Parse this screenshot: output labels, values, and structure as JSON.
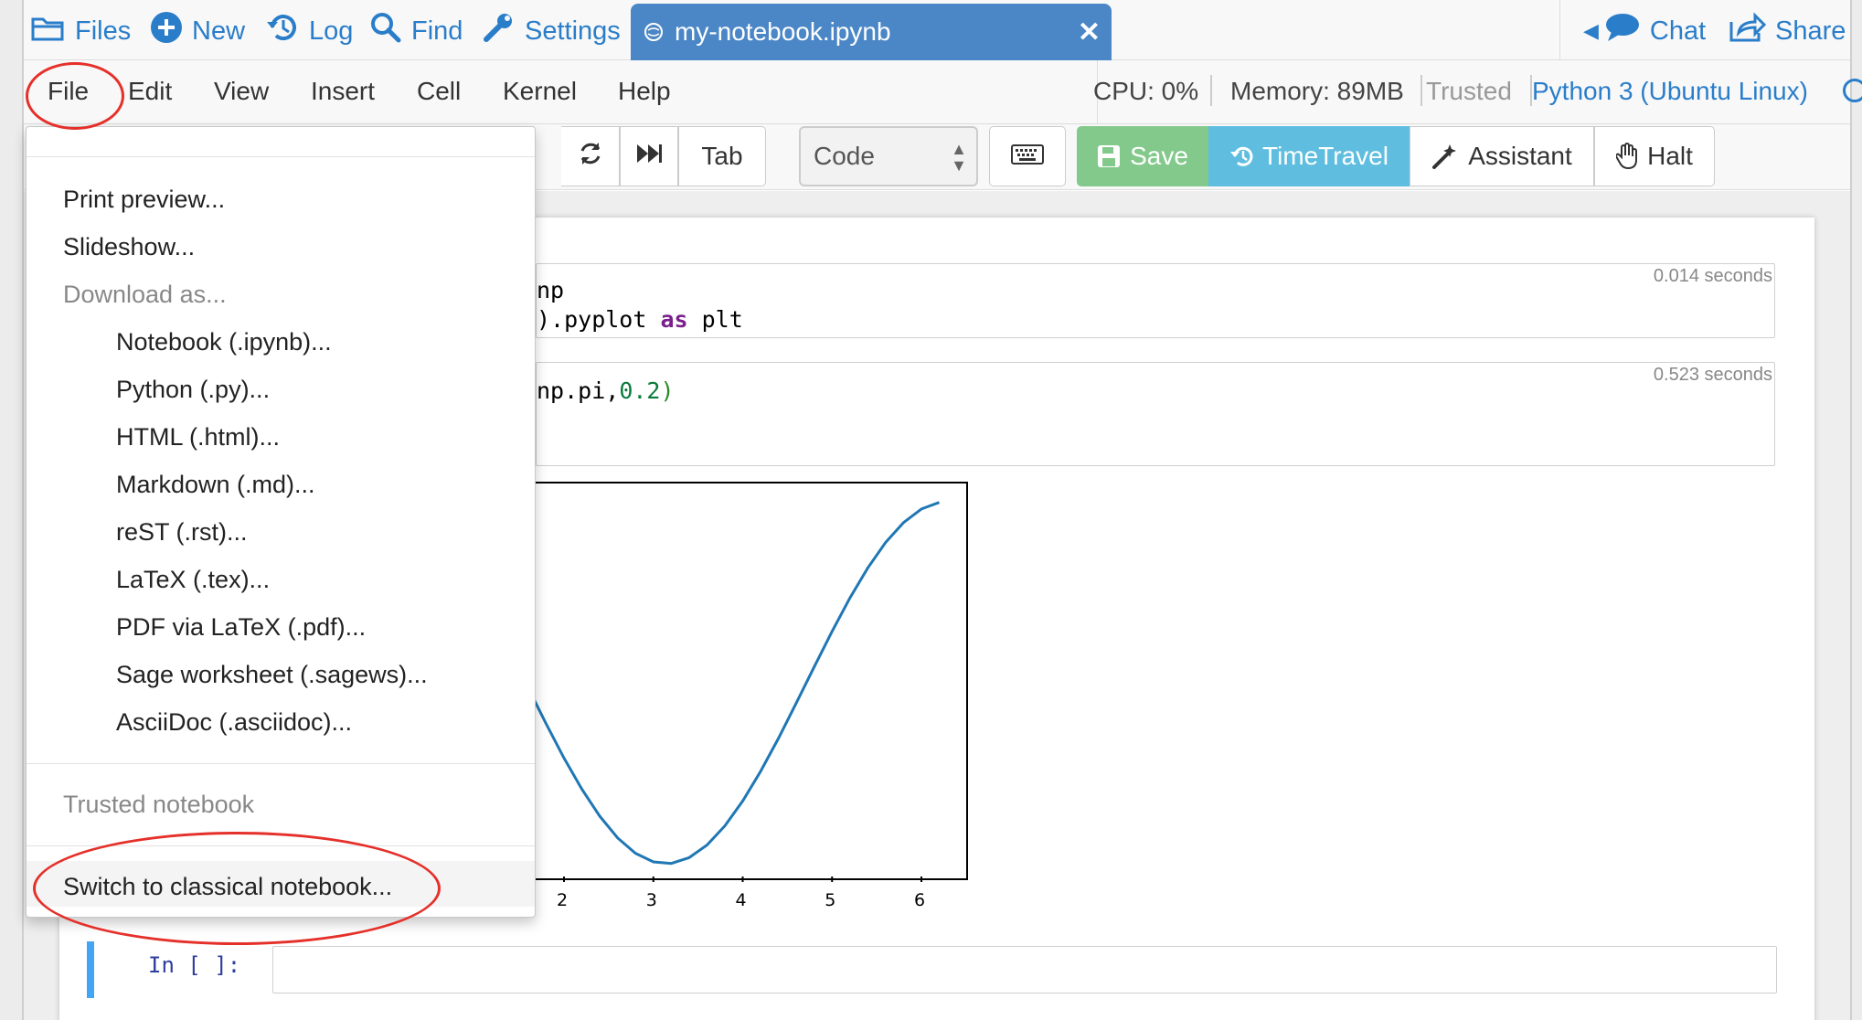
{
  "topbar": {
    "files_label": "Files",
    "new_label": "New",
    "log_label": "Log",
    "find_label": "Find",
    "settings_label": "Settings",
    "active_tab_title": "my-notebook.ipynb",
    "active_tab_close": "✕",
    "chat_label": "Chat",
    "share_label": "Share"
  },
  "menubar": {
    "items": [
      "File",
      "Edit",
      "View",
      "Insert",
      "Cell",
      "Kernel",
      "Help"
    ],
    "cpu": "CPU: 0%",
    "memory": "Memory: 89MB",
    "trusted": "Trusted",
    "kernel": "Python 3 (Ubuntu Linux)"
  },
  "toolbar": {
    "tab_label": "Tab",
    "cell_type": "Code",
    "save_label": "Save",
    "timetravel_label": "TimeTravel",
    "assistant_label": "Assistant",
    "halt_label": "Halt"
  },
  "notebook": {
    "cell1": {
      "line1": "np",
      "line2_a": ").pyplot ",
      "line2_kw": "as",
      "line2_b": " plt",
      "exec_time": "0.014 seconds"
    },
    "cell2": {
      "line1_a": "np.pi,",
      "line1_num": "0.2",
      "line1_paren": ")",
      "exec_time": "0.523 seconds"
    },
    "last_cell_prompt": "In [ ]:"
  },
  "chart_data": {
    "type": "line",
    "x": [
      0.0,
      0.2,
      0.4,
      0.6,
      0.8,
      1.0,
      1.2,
      1.4,
      1.6,
      1.8,
      2.0,
      2.2,
      2.4,
      2.6,
      2.8,
      3.0,
      3.2,
      3.4,
      3.6,
      3.8,
      4.0,
      4.2,
      4.4,
      4.6,
      4.8,
      5.0,
      5.2,
      5.4,
      5.6,
      5.8,
      6.0,
      6.2
    ],
    "xticks": [
      "2",
      "3",
      "4",
      "5",
      "6"
    ],
    "xlim": [
      -0.31,
      6.51
    ],
    "ylim": [
      -1.1,
      1.1
    ],
    "function": "cos(x)",
    "line_color": "#1f77b4",
    "title": "",
    "xlabel": "",
    "ylabel": ""
  },
  "file_menu": {
    "print_preview": "Print preview...",
    "slideshow": "Slideshow...",
    "download_as": "Download as...",
    "downloads": [
      "Notebook (.ipynb)...",
      "Python (.py)...",
      "HTML (.html)...",
      "Markdown (.md)...",
      "reST (.rst)...",
      "LaTeX (.tex)...",
      "PDF via LaTeX (.pdf)...",
      "Sage worksheet (.sagews)...",
      "AsciiDoc (.asciidoc)..."
    ],
    "trusted_notebook": "Trusted notebook",
    "switch_classical": "Switch to classical notebook..."
  },
  "colors": {
    "link_blue": "#2a7dc9",
    "tab_blue": "#4b87c6",
    "save_green": "#83c98b",
    "timetravel_cyan": "#5fbedf",
    "annotation_red": "#e5302a"
  }
}
